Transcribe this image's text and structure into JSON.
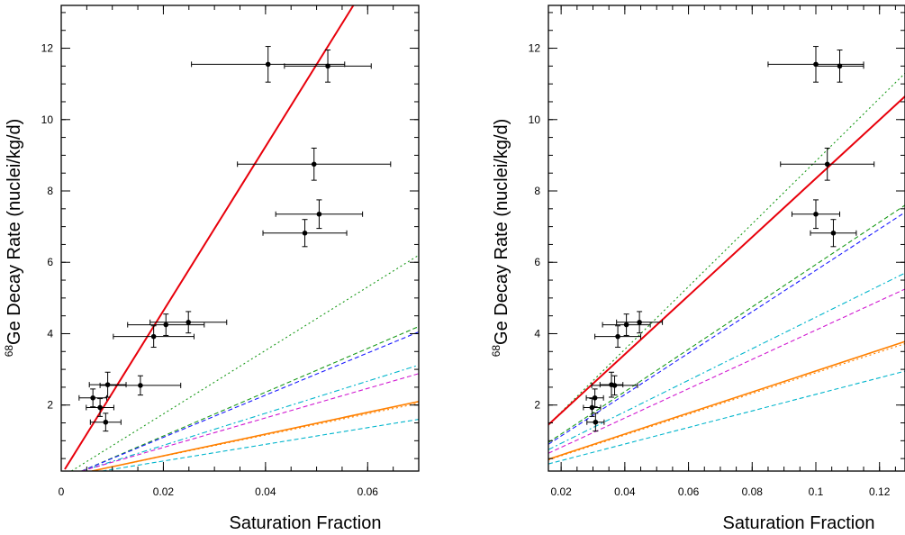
{
  "chart_data": [
    {
      "type": "scatter",
      "xlabel": "Saturation Fraction",
      "ylabel_sup": "68",
      "ylabel_main": "Ge Decay Rate (nuclei/kg/d)",
      "xlim": [
        0,
        0.07
      ],
      "ylim": [
        0.15,
        13.2
      ],
      "xticks": [
        0,
        0.02,
        0.04,
        0.06
      ],
      "xtick_labels": [
        "0",
        "0.02",
        "0.04",
        "0.06"
      ],
      "yticks": [
        2,
        4,
        6,
        8,
        10,
        12
      ],
      "ytick_labels": [
        "2",
        "4",
        "6",
        "8",
        "10",
        "12"
      ],
      "x_minor_step": 0.005,
      "y_minor_step": 0.5,
      "points": [
        {
          "x": 0.0405,
          "xerr": 0.015,
          "y": 11.55,
          "yerr": 0.5
        },
        {
          "x": 0.0522,
          "xerr": 0.0085,
          "y": 11.5,
          "yerr": 0.45
        },
        {
          "x": 0.0495,
          "xerr": 0.015,
          "y": 8.75,
          "yerr": 0.45
        },
        {
          "x": 0.0505,
          "xerr": 0.0085,
          "y": 7.35,
          "yerr": 0.4
        },
        {
          "x": 0.0477,
          "xerr": 0.0082,
          "y": 6.82,
          "yerr": 0.38
        },
        {
          "x": 0.0249,
          "xerr": 0.0075,
          "y": 4.32,
          "yerr": 0.3
        },
        {
          "x": 0.0205,
          "xerr": 0.0075,
          "y": 4.25,
          "yerr": 0.3
        },
        {
          "x": 0.0181,
          "xerr": 0.0079,
          "y": 3.92,
          "yerr": 0.3
        },
        {
          "x": 0.0155,
          "xerr": 0.0079,
          "y": 2.55,
          "yerr": 0.27
        },
        {
          "x": 0.0091,
          "xerr": 0.0036,
          "y": 2.57,
          "yerr": 0.35
        },
        {
          "x": 0.0062,
          "xerr": 0.0027,
          "y": 2.2,
          "yerr": 0.25
        },
        {
          "x": 0.0076,
          "xerr": 0.0027,
          "y": 1.93,
          "yerr": 0.25
        },
        {
          "x": 0.0087,
          "xerr": 0.003,
          "y": 1.52,
          "yerr": 0.25
        }
      ],
      "lines": [
        {
          "color": "#e8000b",
          "style": "solid",
          "x": [
            0.0007,
            0.0572
          ],
          "y": [
            0.2,
            13.2
          ]
        },
        {
          "color": "#1a9a1a",
          "style": "dotted",
          "x": [
            0.002,
            0.07
          ],
          "y": [
            0.15,
            6.2
          ]
        },
        {
          "color": "#1a9a1a",
          "style": "dashed",
          "x": [
            0.004,
            0.07
          ],
          "y": [
            0.15,
            4.2
          ]
        },
        {
          "color": "#1a1aff",
          "style": "dashed",
          "x": [
            0.004,
            0.07
          ],
          "y": [
            0.15,
            4.05
          ]
        },
        {
          "color": "#00b5cc",
          "style": "dashdot",
          "x": [
            0.004,
            0.07
          ],
          "y": [
            0.15,
            3.12
          ]
        },
        {
          "color": "#d11ad1",
          "style": "dashed",
          "x": [
            0.004,
            0.07
          ],
          "y": [
            0.15,
            2.88
          ]
        },
        {
          "color": "#ff8000",
          "style": "solid",
          "x": [
            0.006,
            0.07
          ],
          "y": [
            0.15,
            2.1
          ]
        },
        {
          "color": "#ff8000",
          "style": "dotted",
          "x": [
            0.006,
            0.07
          ],
          "y": [
            0.15,
            2.05
          ]
        },
        {
          "color": "#00b5cc",
          "style": "dashed",
          "x": [
            0.008,
            0.07
          ],
          "y": [
            0.15,
            1.6
          ]
        }
      ]
    },
    {
      "type": "scatter",
      "xlabel": "Saturation Fraction",
      "ylabel_sup": "68",
      "ylabel_main": "Ge Decay Rate (nuclei/kg/d)",
      "xlim": [
        0.016,
        0.128
      ],
      "ylim": [
        0.15,
        13.2
      ],
      "xticks": [
        0.02,
        0.04,
        0.06,
        0.08,
        0.1,
        0.12
      ],
      "xtick_labels": [
        "0.02",
        "0.04",
        "0.06",
        "0.08",
        "0.1",
        "0.12"
      ],
      "yticks": [
        2,
        4,
        6,
        8,
        10,
        12
      ],
      "ytick_labels": [
        "2",
        "4",
        "6",
        "8",
        "10",
        "12"
      ],
      "x_minor_step": 0.005,
      "y_minor_step": 0.5,
      "points": [
        {
          "x": 0.1,
          "xerr": 0.015,
          "y": 11.55,
          "yerr": 0.5
        },
        {
          "x": 0.1075,
          "xerr": 0.0075,
          "y": 11.5,
          "yerr": 0.45
        },
        {
          "x": 0.1036,
          "xerr": 0.0147,
          "y": 8.75,
          "yerr": 0.45
        },
        {
          "x": 0.1,
          "xerr": 0.0075,
          "y": 7.35,
          "yerr": 0.4
        },
        {
          "x": 0.1055,
          "xerr": 0.0072,
          "y": 6.82,
          "yerr": 0.38
        },
        {
          "x": 0.0446,
          "xerr": 0.0072,
          "y": 4.32,
          "yerr": 0.3
        },
        {
          "x": 0.0405,
          "xerr": 0.0075,
          "y": 4.25,
          "yerr": 0.3
        },
        {
          "x": 0.0378,
          "xerr": 0.0072,
          "y": 3.92,
          "yerr": 0.3
        },
        {
          "x": 0.0368,
          "xerr": 0.0072,
          "y": 2.55,
          "yerr": 0.27
        },
        {
          "x": 0.0358,
          "xerr": 0.0036,
          "y": 2.57,
          "yerr": 0.35
        },
        {
          "x": 0.0306,
          "xerr": 0.0027,
          "y": 2.2,
          "yerr": 0.25
        },
        {
          "x": 0.0297,
          "xerr": 0.0027,
          "y": 1.93,
          "yerr": 0.25
        },
        {
          "x": 0.0308,
          "xerr": 0.0027,
          "y": 1.52,
          "yerr": 0.25
        }
      ],
      "lines": [
        {
          "color": "#1a9a1a",
          "style": "dotted",
          "x": [
            0.016,
            0.128
          ],
          "y": [
            1.45,
            11.3
          ]
        },
        {
          "color": "#e8000b",
          "style": "solid",
          "x": [
            0.016,
            0.128
          ],
          "y": [
            1.45,
            10.65
          ]
        },
        {
          "color": "#1a9a1a",
          "style": "dashed",
          "x": [
            0.016,
            0.128
          ],
          "y": [
            0.95,
            7.6
          ]
        },
        {
          "color": "#1a1aff",
          "style": "dashed",
          "x": [
            0.016,
            0.128
          ],
          "y": [
            0.9,
            7.4
          ]
        },
        {
          "color": "#00b5cc",
          "style": "dashdot",
          "x": [
            0.016,
            0.128
          ],
          "y": [
            0.75,
            5.7
          ]
        },
        {
          "color": "#d11ad1",
          "style": "dashed",
          "x": [
            0.016,
            0.128
          ],
          "y": [
            0.65,
            5.25
          ]
        },
        {
          "color": "#ff8000",
          "style": "solid",
          "x": [
            0.016,
            0.128
          ],
          "y": [
            0.48,
            3.78
          ]
        },
        {
          "color": "#ff8000",
          "style": "dotted",
          "x": [
            0.016,
            0.128
          ],
          "y": [
            0.46,
            3.72
          ]
        },
        {
          "color": "#00b5cc",
          "style": "dashed",
          "x": [
            0.016,
            0.128
          ],
          "y": [
            0.35,
            2.95
          ]
        }
      ]
    }
  ]
}
